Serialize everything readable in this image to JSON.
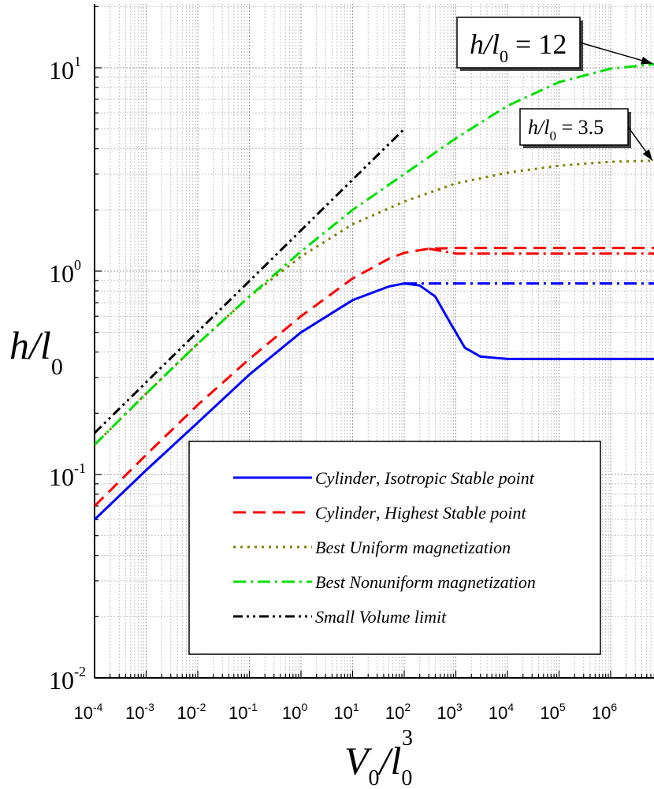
{
  "chart_data": {
    "type": "line",
    "x_scale": "log",
    "y_scale": "log",
    "xlim": [
      0.0001,
      1000000000
    ],
    "ylim": [
      0.01,
      20
    ],
    "grid": true,
    "legend_position": "bottom-right",
    "x_ticks": [
      {
        "value": 0.0001,
        "base": "10",
        "exp": "-4"
      },
      {
        "value": 0.001,
        "base": "10",
        "exp": "-3"
      },
      {
        "value": 0.01,
        "base": "10",
        "exp": "-2"
      },
      {
        "value": 0.1,
        "base": "10",
        "exp": "-1"
      },
      {
        "value": 1,
        "base": "10",
        "exp": "0"
      },
      {
        "value": 10,
        "base": "10",
        "exp": "1"
      },
      {
        "value": 100,
        "base": "10",
        "exp": "2"
      },
      {
        "value": 1000,
        "base": "10",
        "exp": "3"
      },
      {
        "value": 10000,
        "base": "10",
        "exp": "4"
      },
      {
        "value": 100000,
        "base": "10",
        "exp": "5"
      },
      {
        "value": 1000000,
        "base": "10",
        "exp": "6"
      }
    ],
    "y_ticks": [
      {
        "value": 0.01,
        "base": "10",
        "exp": "-2"
      },
      {
        "value": 0.1,
        "base": "10",
        "exp": "-1"
      },
      {
        "value": 1,
        "base": "10",
        "exp": "0"
      },
      {
        "value": 10,
        "base": "10",
        "exp": "1"
      }
    ],
    "xlabel": {
      "a": "V",
      "a_sub": "0",
      "slash": "/",
      "b": "l",
      "b_sub": "0",
      "b_sup": "3"
    },
    "ylabel": {
      "a": "h",
      "slash": "/",
      "b": "l",
      "b_sub": "0"
    },
    "series": [
      {
        "name": "Cylinder, Isotropic Stable point",
        "color": "#0000ff",
        "dash": "solid",
        "points": [
          [
            0.0001,
            0.06
          ],
          [
            0.001,
            0.105
          ],
          [
            0.01,
            0.18
          ],
          [
            0.1,
            0.31
          ],
          [
            1,
            0.5
          ],
          [
            10,
            0.72
          ],
          [
            50,
            0.84
          ],
          [
            100,
            0.87
          ],
          [
            200,
            0.85
          ],
          [
            400,
            0.75
          ],
          [
            800,
            0.55
          ],
          [
            1500,
            0.42
          ],
          [
            3000,
            0.38
          ],
          [
            10000,
            0.37
          ],
          [
            100000,
            0.37
          ],
          [
            1000000,
            0.37
          ],
          [
            10000000,
            0.37
          ]
        ],
        "continuation": {
          "dash": "dashdot",
          "points": [
            [
              100,
              0.87
            ],
            [
              10000000,
              0.87
            ]
          ]
        }
      },
      {
        "name": "Cylinder, Highest Stable point",
        "color": "#ff0000",
        "dash": "dash",
        "points": [
          [
            0.0001,
            0.07
          ],
          [
            0.001,
            0.125
          ],
          [
            0.01,
            0.22
          ],
          [
            0.1,
            0.37
          ],
          [
            1,
            0.6
          ],
          [
            10,
            0.92
          ],
          [
            50,
            1.15
          ],
          [
            100,
            1.23
          ],
          [
            300,
            1.29
          ],
          [
            1000,
            1.3
          ],
          [
            10000000,
            1.3
          ]
        ],
        "continuation": {
          "dash": "dashdot",
          "points": [
            [
              300,
              1.29
            ],
            [
              1000,
              1.22
            ],
            [
              10000000,
              1.22
            ]
          ]
        }
      },
      {
        "name": "Best Uniform magnetization",
        "color": "#808000",
        "dash": "dot",
        "points": [
          [
            0.0001,
            0.14
          ],
          [
            0.001,
            0.25
          ],
          [
            0.01,
            0.44
          ],
          [
            0.1,
            0.75
          ],
          [
            1,
            1.18
          ],
          [
            10,
            1.7
          ],
          [
            100,
            2.2
          ],
          [
            1000,
            2.7
          ],
          [
            10000,
            3.05
          ],
          [
            100000,
            3.3
          ],
          [
            1000000,
            3.45
          ],
          [
            10000000,
            3.5
          ]
        ]
      },
      {
        "name": "Best Nonuniform magnetization",
        "color": "#00e000",
        "dash": "dashdot",
        "points": [
          [
            0.0001,
            0.14
          ],
          [
            0.001,
            0.25
          ],
          [
            0.01,
            0.44
          ],
          [
            0.1,
            0.75
          ],
          [
            1,
            1.25
          ],
          [
            10,
            2.0
          ],
          [
            100,
            3.0
          ],
          [
            1000,
            4.5
          ],
          [
            10000,
            6.5
          ],
          [
            100000,
            8.5
          ],
          [
            1000000,
            9.9
          ],
          [
            10000000,
            10.5
          ]
        ]
      },
      {
        "name": "Small Volume limit",
        "color": "#000000",
        "dash": "dashdotdot",
        "points": [
          [
            0.0001,
            0.16
          ],
          [
            100,
            5.0
          ]
        ]
      }
    ],
    "legend": [
      {
        "pre": "Cylinder",
        "post": "Isotropic Stable point"
      },
      {
        "pre": "Cylinder",
        "post": "Highest Stable point"
      },
      {
        "pre": "",
        "post": "Best Uniform magnetization"
      },
      {
        "pre": "",
        "post": "Best Nonuniform magnetization"
      },
      {
        "pre": "",
        "post": "Small Volume limit"
      }
    ],
    "annotations": [
      {
        "a": "h",
        "b": "l",
        "sub": "0",
        "eq": "= 12",
        "target": [
          10000000,
          10.5
        ]
      },
      {
        "a": "h",
        "b": "l",
        "sub": "0",
        "eq": "= 3.5",
        "target": [
          10000000,
          3.5
        ]
      }
    ]
  }
}
